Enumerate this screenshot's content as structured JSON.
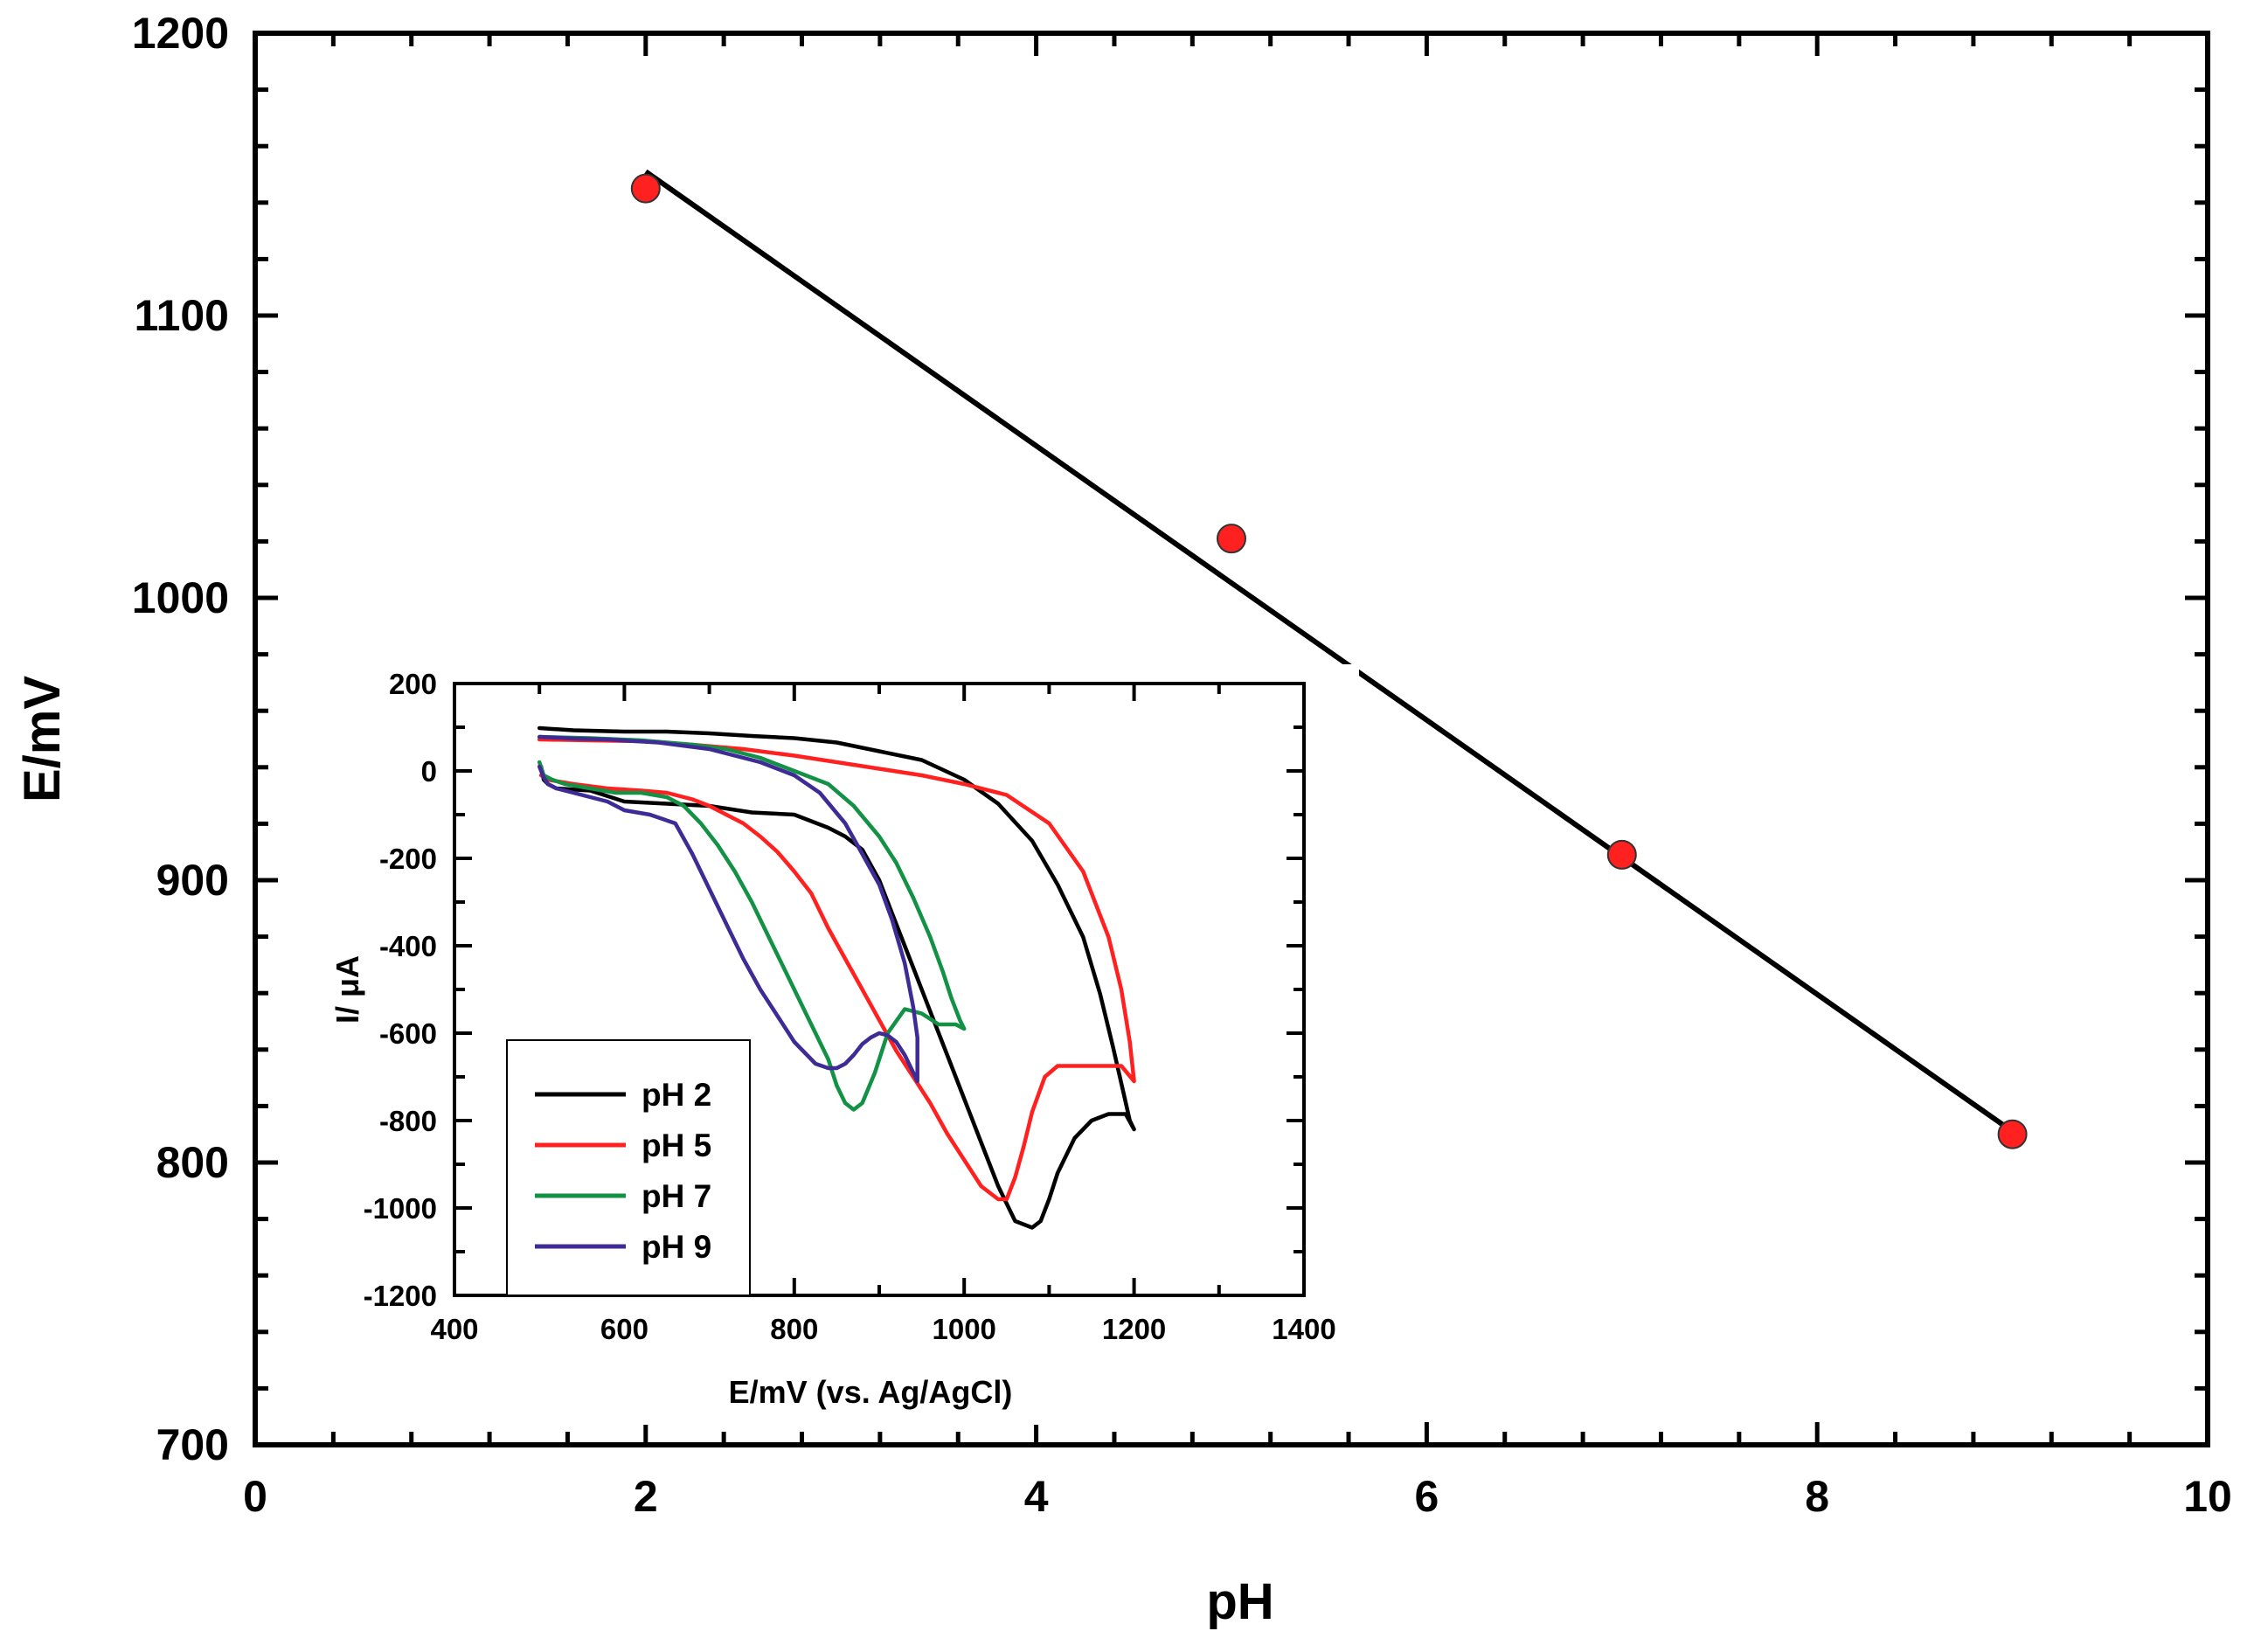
{
  "chart_data": [
    {
      "type": "scatter",
      "title": "",
      "xlabel": "pH",
      "ylabel": "E/mV",
      "xlim": [
        0,
        10
      ],
      "ylim": [
        700,
        1200
      ],
      "xticks": [
        0,
        2,
        4,
        6,
        8,
        10
      ],
      "yticks": [
        700,
        800,
        900,
        1000,
        1100,
        1200
      ],
      "grid": false,
      "marker_color": "#ff2020",
      "fit_color": "#000000",
      "points": [
        {
          "x": 2,
          "y": 1145
        },
        {
          "x": 5,
          "y": 1021
        },
        {
          "x": 7,
          "y": 909
        },
        {
          "x": 9,
          "y": 810
        }
      ],
      "fit_line": {
        "x": [
          2,
          9
        ],
        "y": [
          1151,
          811
        ]
      }
    },
    {
      "type": "line",
      "title": "",
      "xlabel": "E/mV (vs. Ag/AgCl)",
      "ylabel": "I/ μA",
      "xlim": [
        400,
        1400
      ],
      "ylim": [
        -1200,
        200
      ],
      "xticks": [
        400,
        600,
        800,
        1000,
        1200,
        1400
      ],
      "yticks": [
        -1200,
        -1000,
        -800,
        -600,
        -400,
        -200,
        0,
        200
      ],
      "grid": false,
      "legend_position": "bottom-left",
      "series": [
        {
          "name": "pH 2",
          "color": "#000000",
          "x": [
            500,
            540,
            600,
            650,
            700,
            750,
            800,
            850,
            900,
            950,
            1000,
            1040,
            1080,
            1110,
            1140,
            1160,
            1175,
            1188,
            1195,
            1200,
            1200,
            1190,
            1170,
            1150,
            1130,
            1110,
            1100,
            1090,
            1080,
            1060,
            1040,
            1020,
            1000,
            980,
            960,
            940,
            920,
            900,
            880,
            860,
            840,
            800,
            750,
            700,
            650,
            600,
            560,
            520,
            510,
            505,
            502
          ],
          "y": [
            98,
            93,
            90,
            90,
            86,
            80,
            75,
            65,
            45,
            25,
            -20,
            -75,
            -160,
            -260,
            -380,
            -510,
            -630,
            -740,
            -800,
            -820,
            -820,
            -785,
            -785,
            -800,
            -840,
            -920,
            -980,
            -1030,
            -1045,
            -1030,
            -950,
            -850,
            -750,
            -650,
            -550,
            -450,
            -350,
            -250,
            -180,
            -150,
            -130,
            -100,
            -95,
            -80,
            -75,
            -70,
            -45,
            -40,
            -30,
            -20,
            10
          ]
        },
        {
          "name": "pH 5",
          "color": "#ff2020",
          "x": [
            500,
            560,
            620,
            680,
            740,
            800,
            850,
            900,
            950,
            1000,
            1050,
            1100,
            1140,
            1170,
            1185,
            1195,
            1200,
            1200,
            1185,
            1170,
            1150,
            1130,
            1110,
            1095,
            1080,
            1070,
            1060,
            1050,
            1040,
            1020,
            1000,
            980,
            960,
            940,
            920,
            900,
            880,
            860,
            840,
            820,
            800,
            780,
            760,
            740,
            720,
            700,
            680,
            650,
            620,
            580,
            540,
            510,
            502
          ],
          "y": [
            72,
            70,
            68,
            60,
            50,
            35,
            20,
            5,
            -10,
            -30,
            -55,
            -120,
            -230,
            -380,
            -500,
            -620,
            -710,
            -710,
            -675,
            -675,
            -675,
            -675,
            -675,
            -700,
            -780,
            -860,
            -930,
            -980,
            -980,
            -950,
            -890,
            -830,
            -760,
            -700,
            -640,
            -570,
            -500,
            -430,
            -360,
            -280,
            -230,
            -185,
            -150,
            -120,
            -100,
            -80,
            -65,
            -50,
            -45,
            -40,
            -30,
            -20,
            -10
          ]
        },
        {
          "name": "pH 7",
          "color": "#139145",
          "x": [
            500,
            560,
            620,
            680,
            720,
            760,
            800,
            840,
            870,
            900,
            920,
            940,
            960,
            975,
            985,
            995,
            1000,
            1000,
            990,
            970,
            950,
            930,
            910,
            895,
            880,
            870,
            860,
            850,
            840,
            825,
            810,
            790,
            770,
            750,
            730,
            710,
            690,
            670,
            650,
            620,
            590,
            560,
            530,
            515,
            505,
            500
          ],
          "y": [
            78,
            75,
            70,
            60,
            50,
            30,
            0,
            -30,
            -80,
            -150,
            -210,
            -290,
            -380,
            -460,
            -520,
            -570,
            -590,
            -590,
            -580,
            -580,
            -555,
            -545,
            -600,
            -690,
            -760,
            -775,
            -760,
            -720,
            -660,
            -600,
            -540,
            -460,
            -380,
            -300,
            -230,
            -170,
            -120,
            -80,
            -60,
            -50,
            -50,
            -40,
            -30,
            -20,
            -10,
            20
          ]
        },
        {
          "name": "pH 9",
          "color": "#3f2b96",
          "x": [
            500,
            540,
            580,
            640,
            700,
            760,
            800,
            830,
            860,
            880,
            900,
            915,
            930,
            940,
            945,
            945,
            940,
            930,
            920,
            910,
            900,
            890,
            880,
            870,
            860,
            850,
            840,
            825,
            800,
            780,
            760,
            740,
            720,
            700,
            680,
            660,
            630,
            600,
            580,
            560,
            540,
            520,
            510,
            505,
            500
          ],
          "y": [
            78,
            74,
            72,
            65,
            50,
            20,
            -10,
            -50,
            -120,
            -190,
            -260,
            -340,
            -440,
            -540,
            -610,
            -710,
            -690,
            -650,
            -620,
            -605,
            -600,
            -610,
            -625,
            -650,
            -670,
            -680,
            -680,
            -670,
            -620,
            -560,
            -500,
            -430,
            -350,
            -270,
            -190,
            -120,
            -100,
            -90,
            -70,
            -60,
            -50,
            -40,
            -30,
            -15,
            10
          ]
        }
      ]
    }
  ]
}
